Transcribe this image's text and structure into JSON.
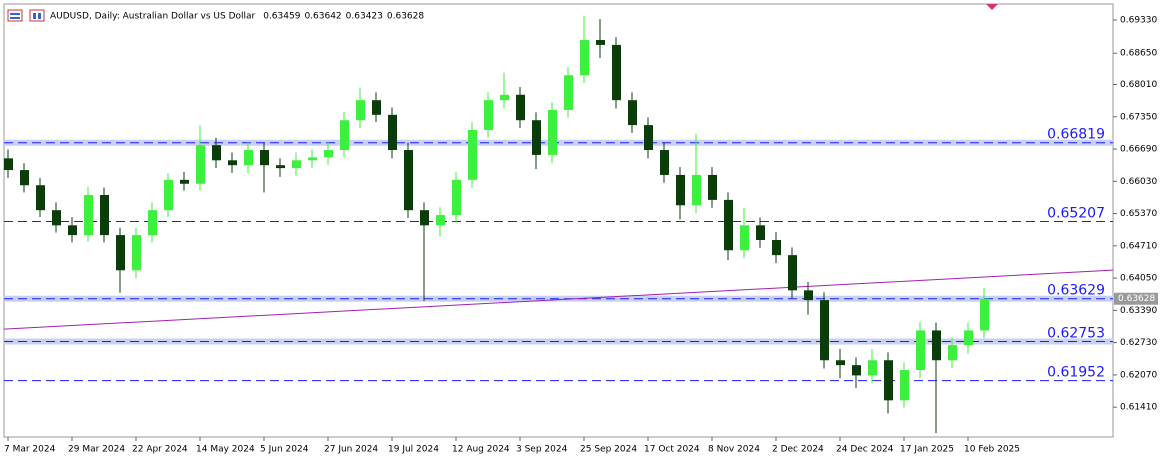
{
  "chart_data": {
    "type": "candlestick",
    "title": "AUDUSD, Daily:  Australian Dollar vs US Dollar",
    "header_ohlc": [
      "0.63459",
      "0.63642",
      "0.63423",
      "0.63628"
    ],
    "categories": [
      "7 Mar 2024",
      null,
      null,
      null,
      "29 Mar 2024",
      null,
      null,
      null,
      "22 Apr 2024",
      null,
      null,
      null,
      "14 May 2024",
      null,
      null,
      null,
      "5 Jun 2024",
      null,
      null,
      null,
      "27 Jun 2024",
      null,
      null,
      null,
      "19 Jul 2024",
      null,
      null,
      null,
      "12 Aug 2024",
      null,
      null,
      null,
      "3 Sep 2024",
      null,
      null,
      null,
      "25 Sep 2024",
      null,
      null,
      null,
      "17 Oct 2024",
      null,
      null,
      null,
      "8 Nov 2024",
      null,
      null,
      null,
      "2 Dec 2024",
      null,
      null,
      null,
      "24 Dec 2024",
      null,
      null,
      null,
      "17 Jan 2025",
      null,
      null,
      null,
      "10 Feb 2025",
      null
    ],
    "open": [
      0.665,
      0.6626,
      0.6595,
      0.6544,
      0.6513,
      0.6493,
      0.6575,
      0.6493,
      0.6421,
      0.6493,
      0.6544,
      0.6606,
      0.6598,
      0.6677,
      0.6646,
      0.6636,
      0.6667,
      0.6636,
      0.663,
      0.6646,
      0.6652,
      0.6667,
      0.6728,
      0.6769,
      0.6739,
      0.6667,
      0.6544,
      0.6513,
      0.6534,
      0.6606,
      0.6708,
      0.6769,
      0.678,
      0.6728,
      0.6657,
      0.6749,
      0.682,
      0.6892,
      0.6882,
      0.6769,
      0.6718,
      0.6667,
      0.6616,
      0.6554,
      0.6616,
      0.6565,
      0.6462,
      0.6513,
      0.6483,
      0.6452,
      0.638,
      0.636,
      0.6237,
      0.6227,
      0.6206,
      0.6237,
      0.6155,
      0.6217,
      0.6298,
      0.6237,
      0.6268,
      0.6298
    ],
    "high": [
      0.6668,
      0.664,
      0.661,
      0.656,
      0.653,
      0.6592,
      0.659,
      0.6508,
      0.6508,
      0.656,
      0.662,
      0.6622,
      0.6718,
      0.6692,
      0.6662,
      0.6683,
      0.6682,
      0.665,
      0.6662,
      0.6668,
      0.6683,
      0.6745,
      0.6795,
      0.6785,
      0.6754,
      0.6682,
      0.656,
      0.655,
      0.6622,
      0.6724,
      0.6785,
      0.6825,
      0.6796,
      0.6744,
      0.6765,
      0.6836,
      0.6942,
      0.6935,
      0.6898,
      0.6785,
      0.6734,
      0.6683,
      0.6632,
      0.67,
      0.6632,
      0.658,
      0.6549,
      0.6529,
      0.6499,
      0.6468,
      0.6397,
      0.6376,
      0.626,
      0.6243,
      0.626,
      0.6253,
      0.6233,
      0.6315,
      0.6314,
      0.6284,
      0.6314,
      0.6385
    ],
    "low": [
      0.661,
      0.658,
      0.653,
      0.6498,
      0.6478,
      0.648,
      0.6478,
      0.6375,
      0.6405,
      0.6478,
      0.653,
      0.6584,
      0.6584,
      0.663,
      0.662,
      0.662,
      0.658,
      0.6612,
      0.6615,
      0.663,
      0.6637,
      0.6652,
      0.6712,
      0.6724,
      0.665,
      0.6528,
      0.6358,
      0.649,
      0.6518,
      0.659,
      0.6692,
      0.6752,
      0.6712,
      0.6628,
      0.664,
      0.6733,
      0.6804,
      0.6855,
      0.6752,
      0.6702,
      0.665,
      0.66,
      0.6525,
      0.6538,
      0.6549,
      0.6442,
      0.6446,
      0.6467,
      0.6436,
      0.6364,
      0.633,
      0.622,
      0.62,
      0.618,
      0.619,
      0.6128,
      0.614,
      0.6201,
      0.6088,
      0.6221,
      0.625,
      0.6282
    ],
    "close": [
      0.6626,
      0.6595,
      0.6544,
      0.6513,
      0.6493,
      0.6575,
      0.6493,
      0.6421,
      0.6493,
      0.6544,
      0.6606,
      0.6598,
      0.6677,
      0.6646,
      0.6636,
      0.6667,
      0.6636,
      0.663,
      0.6646,
      0.6652,
      0.6667,
      0.6728,
      0.6769,
      0.6739,
      0.6667,
      0.6544,
      0.6513,
      0.6534,
      0.6606,
      0.6708,
      0.6769,
      0.678,
      0.6728,
      0.6657,
      0.6749,
      0.682,
      0.6892,
      0.6882,
      0.6769,
      0.6718,
      0.6667,
      0.6616,
      0.6554,
      0.6616,
      0.6565,
      0.6462,
      0.6513,
      0.6483,
      0.6452,
      0.638,
      0.636,
      0.6237,
      0.6227,
      0.6206,
      0.6237,
      0.6155,
      0.6217,
      0.6298,
      0.6237,
      0.6268,
      0.6298,
      0.63628
    ],
    "up_color": "#3ef03e",
    "down_color": "#0b3d0b",
    "ylim": [
      0.608,
      0.69657
    ],
    "yticks": [
      {
        "value": 0.6933,
        "label": "0.69330"
      },
      {
        "value": 0.6865,
        "label": "0.68650"
      },
      {
        "value": 0.6801,
        "label": "0.68010"
      },
      {
        "value": 0.6735,
        "label": "0.67350"
      },
      {
        "value": 0.6669,
        "label": "0.66690"
      },
      {
        "value": 0.6603,
        "label": "0.66030"
      },
      {
        "value": 0.6537,
        "label": "0.65370"
      },
      {
        "value": 0.6471,
        "label": "0.64710"
      },
      {
        "value": 0.6405,
        "label": "0.64050"
      },
      {
        "value": 0.6339,
        "label": "0.63390"
      },
      {
        "value": 0.6273,
        "label": "0.62730"
      },
      {
        "value": 0.6207,
        "label": "0.62070"
      },
      {
        "value": 0.6141,
        "label": "0.61410"
      }
    ],
    "levels": [
      {
        "value": 0.66819,
        "band": true
      },
      {
        "value": 0.65207,
        "band": false
      },
      {
        "value": 0.63629,
        "band": true
      },
      {
        "value": 0.62753,
        "band": true
      },
      {
        "value": 0.61952,
        "band": false
      }
    ],
    "level_color": "#1a1aff",
    "current_price": "0.63628",
    "trendline": {
      "start": 0.63006,
      "end": 0.64213,
      "color": "#a020b0"
    }
  }
}
